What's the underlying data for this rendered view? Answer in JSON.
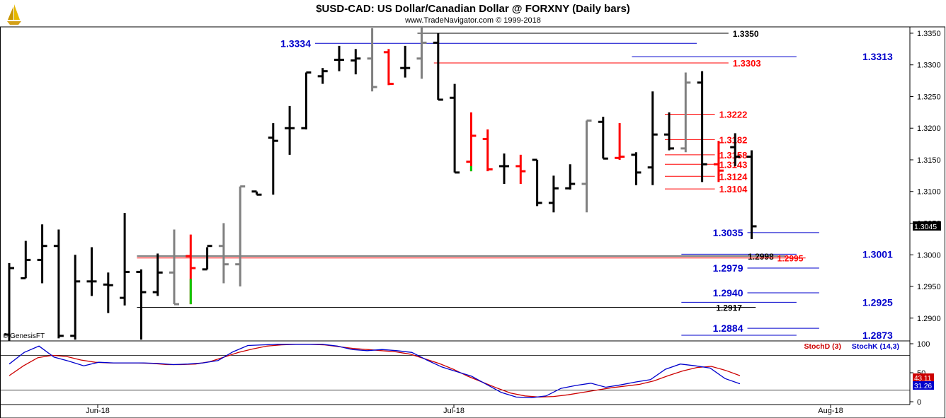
{
  "header": {
    "title": "$USD-CAD:  US Dollar/Canadian Dollar @ FORXNY  (Daily bars)",
    "subtitle": "www.TradeNavigator.com © 1999-2018",
    "credit": "© GenesisFT",
    "logo_icon": "sailboat-logo-icon"
  },
  "colors": {
    "up_bar": "#000000",
    "gray_bar": "#808080",
    "red_bar": "#ff0000",
    "green_bar": "#00cc00",
    "blue_level": "#0000cc",
    "red_level": "#ff0000",
    "black_level": "#000000",
    "stoch_d": "#cc0000",
    "stoch_k": "#0000cc"
  },
  "chart_data": [
    {
      "type": "ohlc",
      "title": "$USD-CAD:  US Dollar/Canadian Dollar @ FORXNY  (Daily bars)",
      "ylim": [
        1.2864,
        1.336
      ],
      "y_ticks": [
        "1.3350",
        "1.3300",
        "1.3250",
        "1.3200",
        "1.3150",
        "1.3100",
        "1.3050",
        "1.3000",
        "1.2950",
        "1.2900"
      ],
      "x_ticks": [
        "Jun-18",
        "Jul-18",
        "Aug-18"
      ],
      "last_price": "1.3045",
      "bars": [
        {
          "o": 1.2874,
          "h": 1.2987,
          "l": 1.2864,
          "c": 1.2979,
          "color": "black"
        },
        {
          "o": 1.2963,
          "h": 1.3022,
          "l": 1.2963,
          "c": 1.2992,
          "color": "black"
        },
        {
          "o": 1.2992,
          "h": 1.3048,
          "l": 1.2955,
          "c": 1.3014,
          "color": "black"
        },
        {
          "o": 1.3014,
          "h": 1.304,
          "l": 1.2868,
          "c": 1.2872,
          "color": "black"
        },
        {
          "o": 1.2872,
          "h": 1.3,
          "l": 1.2866,
          "c": 1.2958,
          "color": "black"
        },
        {
          "o": 1.2958,
          "h": 1.3012,
          "l": 1.2935,
          "c": 1.2958,
          "color": "black"
        },
        {
          "o": 1.2953,
          "h": 1.2972,
          "l": 1.2908,
          "c": 1.2952,
          "color": "black"
        },
        {
          "o": 1.2932,
          "h": 1.3066,
          "l": 1.292,
          "c": 1.2973,
          "color": "black"
        },
        {
          "o": 1.2973,
          "h": 1.2977,
          "l": 1.2866,
          "c": 1.2941,
          "color": "black"
        },
        {
          "o": 1.2941,
          "h": 1.3002,
          "l": 1.2935,
          "c": 1.2972,
          "color": "black"
        },
        {
          "o": 1.2972,
          "h": 1.304,
          "l": 1.2922,
          "c": 1.2922,
          "color": "gray"
        },
        {
          "o": 1.2998,
          "h": 1.3032,
          "l": 1.2922,
          "c": 1.2979,
          "color": "red",
          "green_low": 1.2962
        },
        {
          "o": 1.2977,
          "h": 1.3012,
          "l": 1.2977,
          "c": 1.3014,
          "color": "black"
        },
        {
          "o": 1.3014,
          "h": 1.305,
          "l": 1.2955,
          "c": 1.2985,
          "color": "gray"
        },
        {
          "o": 1.2985,
          "h": 1.3108,
          "l": 1.295,
          "c": 1.3108,
          "color": "gray"
        },
        {
          "o": 1.31,
          "h": 1.31,
          "l": 1.3095,
          "c": 1.3095,
          "color": "black"
        },
        {
          "o": 1.3185,
          "h": 1.3208,
          "l": 1.3095,
          "c": 1.318,
          "color": "black"
        },
        {
          "o": 1.32,
          "h": 1.3235,
          "l": 1.3158,
          "c": 1.32,
          "color": "black"
        },
        {
          "o": 1.32,
          "h": 1.3288,
          "l": 1.3198,
          "c": 1.3288,
          "color": "black"
        },
        {
          "o": 1.3282,
          "h": 1.3295,
          "l": 1.327,
          "c": 1.329,
          "color": "black"
        },
        {
          "o": 1.3308,
          "h": 1.333,
          "l": 1.329,
          "c": 1.3308,
          "color": "black"
        },
        {
          "o": 1.3307,
          "h": 1.3325,
          "l": 1.3285,
          "c": 1.331,
          "color": "black"
        },
        {
          "o": 1.331,
          "h": 1.3358,
          "l": 1.3258,
          "c": 1.3265,
          "color": "gray"
        },
        {
          "o": 1.332,
          "h": 1.3325,
          "l": 1.3268,
          "c": 1.327,
          "color": "red"
        },
        {
          "o": 1.3295,
          "h": 1.333,
          "l": 1.328,
          "c": 1.3295,
          "color": "black"
        },
        {
          "o": 1.331,
          "h": 1.336,
          "l": 1.3278,
          "c": 1.3335,
          "color": "gray"
        },
        {
          "o": 1.3335,
          "h": 1.335,
          "l": 1.3245,
          "c": 1.3245,
          "color": "black"
        },
        {
          "o": 1.3248,
          "h": 1.327,
          "l": 1.313,
          "c": 1.313,
          "color": "black"
        },
        {
          "o": 1.3147,
          "h": 1.3225,
          "l": 1.3132,
          "c": 1.3188,
          "color": "red",
          "green_low": 1.314
        },
        {
          "o": 1.3183,
          "h": 1.3198,
          "l": 1.3132,
          "c": 1.3135,
          "color": "red"
        },
        {
          "o": 1.314,
          "h": 1.316,
          "l": 1.3112,
          "c": 1.314,
          "color": "black"
        },
        {
          "o": 1.314,
          "h": 1.3158,
          "l": 1.3112,
          "c": 1.3132,
          "color": "red"
        },
        {
          "o": 1.315,
          "h": 1.315,
          "l": 1.3077,
          "c": 1.3082,
          "color": "black"
        },
        {
          "o": 1.3082,
          "h": 1.3125,
          "l": 1.3067,
          "c": 1.3105,
          "color": "black"
        },
        {
          "o": 1.3105,
          "h": 1.3143,
          "l": 1.3103,
          "c": 1.3112,
          "color": "black"
        },
        {
          "o": 1.3112,
          "h": 1.3212,
          "l": 1.3067,
          "c": 1.3212,
          "color": "gray"
        },
        {
          "o": 1.321,
          "h": 1.3218,
          "l": 1.3152,
          "c": 1.3152,
          "color": "black"
        },
        {
          "o": 1.3153,
          "h": 1.3208,
          "l": 1.315,
          "c": 1.3155,
          "color": "red"
        },
        {
          "o": 1.3158,
          "h": 1.3162,
          "l": 1.311,
          "c": 1.313,
          "color": "black"
        },
        {
          "o": 1.3138,
          "h": 1.3258,
          "l": 1.311,
          "c": 1.319,
          "color": "black"
        },
        {
          "o": 1.319,
          "h": 1.3225,
          "l": 1.3165,
          "c": 1.3168,
          "color": "black"
        },
        {
          "o": 1.3168,
          "h": 1.3288,
          "l": 1.3162,
          "c": 1.3272,
          "color": "gray"
        },
        {
          "o": 1.3272,
          "h": 1.329,
          "l": 1.3115,
          "c": 1.3143,
          "color": "black"
        },
        {
          "o": 1.3143,
          "h": 1.318,
          "l": 1.3115,
          "c": 1.3133,
          "color": "red"
        },
        {
          "o": 1.317,
          "h": 1.3192,
          "l": 1.314,
          "c": 1.3155,
          "color": "black"
        },
        {
          "o": 1.3155,
          "h": 1.3165,
          "l": 1.3025,
          "c": 1.3045,
          "color": "black"
        }
      ],
      "levels": [
        {
          "value": 1.335,
          "label": "1.3350",
          "color": "black",
          "from_bar": 25,
          "to_frac": 0.8,
          "label_side": "right"
        },
        {
          "value": 1.3334,
          "label": "1.3334",
          "color": "blue",
          "from_bar": -1,
          "to_frac": 0.765,
          "label_side": "left"
        },
        {
          "value": 1.3313,
          "label": "1.3313",
          "color": "blue",
          "from_bar": 38,
          "to_frac": 0.875,
          "label_side": "right"
        },
        {
          "value": 1.3303,
          "label": "1.3303",
          "color": "red",
          "from_bar": 26,
          "to_frac": 0.8,
          "label_side": "right"
        },
        {
          "value": 1.3222,
          "label": "1.3222",
          "color": "red",
          "from_bar": 40,
          "to_frac": 0.785,
          "label_side": "right"
        },
        {
          "value": 1.3182,
          "label": "1.3182",
          "color": "red",
          "from_bar": 40,
          "to_frac": 0.785,
          "label_side": "right"
        },
        {
          "value": 1.3158,
          "label": "1.3158",
          "color": "red",
          "from_bar": 40,
          "to_frac": 0.785,
          "label_side": "right"
        },
        {
          "value": 1.3143,
          "label": "1.3143",
          "color": "red",
          "from_bar": 40,
          "to_frac": 0.785,
          "label_side": "right"
        },
        {
          "value": 1.3124,
          "label": "1.3124",
          "color": "red",
          "from_bar": 40,
          "to_frac": 0.785,
          "label_side": "right"
        },
        {
          "value": 1.3104,
          "label": "1.3104",
          "color": "red",
          "from_bar": 40,
          "to_frac": 0.785,
          "label_side": "right"
        },
        {
          "value": 1.3035,
          "label": "1.3035",
          "color": "blue",
          "from_bar": 45,
          "to_frac": 0.9,
          "label_side": "left"
        },
        {
          "value": 1.3001,
          "label": "1.3001",
          "color": "blue",
          "from_bar": 41,
          "to_frac": 0.875,
          "label_side": "right"
        },
        {
          "value": 1.2998,
          "label": "1.2998",
          "color": "black",
          "from_bar": 8,
          "to_frac": 0.865,
          "label_side": "right_inner"
        },
        {
          "value": 1.2995,
          "label": "1.2995",
          "color": "red",
          "from_bar": 8,
          "to_frac": 0.885,
          "label_side": "right_inner2"
        },
        {
          "value": 1.2979,
          "label": "1.2979",
          "color": "blue",
          "from_bar": 45,
          "to_frac": 0.9,
          "label_side": "left"
        },
        {
          "value": 1.294,
          "label": "1.2940",
          "color": "blue",
          "from_bar": 45,
          "to_frac": 0.9,
          "label_side": "left"
        },
        {
          "value": 1.2925,
          "label": "1.2925",
          "color": "blue",
          "from_bar": 41,
          "to_frac": 0.875,
          "label_side": "right"
        },
        {
          "value": 1.2917,
          "label": "1.2917",
          "color": "black",
          "from_bar": 8,
          "to_frac": 0.83,
          "label_side": "right_inner"
        },
        {
          "value": 1.2884,
          "label": "1.2884",
          "color": "blue",
          "from_bar": 45,
          "to_frac": 0.9,
          "label_side": "left"
        },
        {
          "value": 1.2873,
          "label": "1.2873",
          "color": "blue",
          "from_bar": 41,
          "to_frac": 0.875,
          "label_side": "right"
        }
      ]
    },
    {
      "type": "line",
      "title": "",
      "ylim": [
        0,
        100
      ],
      "y_ticks": [
        "100",
        "50",
        "0"
      ],
      "reference_lines": [
        80,
        20
      ],
      "legend": [
        "StochD (3)",
        "StochK (14,3)"
      ],
      "last_values": {
        "d": "43.11",
        "k": "31.26"
      },
      "series": [
        {
          "name": "StochD (3)",
          "color": "#cc0000",
          "values": [
            45,
            62,
            76,
            80,
            78,
            72,
            68,
            67,
            67,
            67,
            66,
            64,
            64,
            65,
            69,
            77,
            85,
            91,
            96,
            98,
            99,
            99,
            98,
            95,
            92,
            90,
            88,
            86,
            82,
            74,
            66,
            56,
            44,
            34,
            24,
            15,
            10,
            8,
            9,
            12,
            16,
            20,
            24,
            27,
            30,
            36,
            45,
            53,
            59,
            61,
            54,
            45
          ]
        },
        {
          "name": "StochK (14,3)",
          "color": "#0000cc",
          "values": [
            65,
            85,
            96,
            77,
            70,
            62,
            68,
            67,
            67,
            67,
            66,
            64,
            65,
            67,
            71,
            86,
            97,
            98,
            99,
            99,
            99,
            99,
            96,
            90,
            88,
            90,
            88,
            85,
            72,
            60,
            52,
            44,
            30,
            16,
            8,
            7,
            10,
            23,
            28,
            32,
            25,
            29,
            34,
            38,
            56,
            65,
            62,
            58,
            40,
            31
          ]
        }
      ]
    }
  ]
}
